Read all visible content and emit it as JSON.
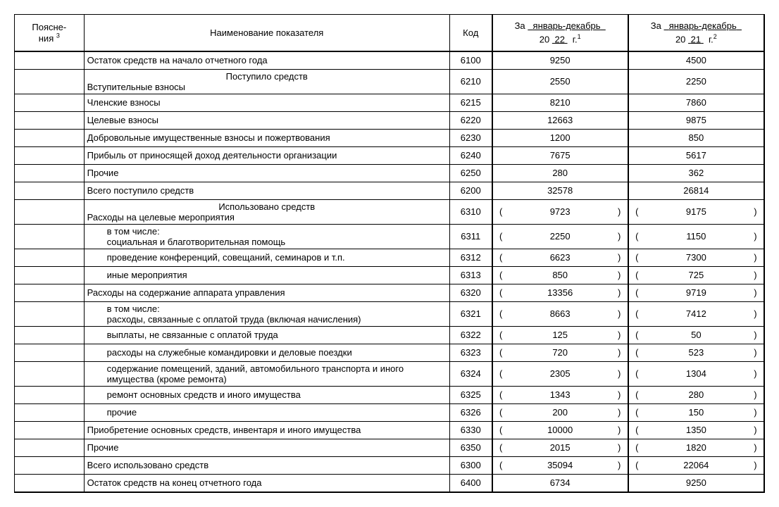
{
  "colors": {
    "background": "#ffffff",
    "border": "#000000",
    "text": "#000000"
  },
  "font": {
    "family": "Arial",
    "size_pt": 10
  },
  "header": {
    "notes_line1": "Поясне-",
    "notes_line2": "ния",
    "notes_sup": "3",
    "name": "Наименование показателя",
    "code": "Код",
    "za": "За",
    "period": "январь-декабрь",
    "twenty": "20",
    "year1": "22",
    "year2": "21",
    "g": "г.",
    "sup1": "1",
    "sup2": "2"
  },
  "rows": [
    {
      "name": "Остаток средств на начало отчетного года",
      "code": "6100",
      "v1": "9250",
      "v2": "4500",
      "paren": false
    },
    {
      "section": "Поступило средств",
      "name": "Вступительные взносы",
      "code": "6210",
      "v1": "2550",
      "v2": "2250",
      "paren": false
    },
    {
      "name": "Членские взносы",
      "code": "6215",
      "v1": "8210",
      "v2": "7860",
      "paren": false
    },
    {
      "name": "Целевые взносы",
      "code": "6220",
      "v1": "12663",
      "v2": "9875",
      "paren": false
    },
    {
      "name": "Добровольные имущественные взносы и пожертвования",
      "code": "6230",
      "v1": "1200",
      "v2": "850",
      "paren": false
    },
    {
      "name": "Прибыль от приносящей доход деятельности организации",
      "code": "6240",
      "v1": "7675",
      "v2": "5617",
      "paren": false
    },
    {
      "name": "Прочие",
      "code": "6250",
      "v1": "280",
      "v2": "362",
      "paren": false
    },
    {
      "name": "Всего поступило средств",
      "code": "6200",
      "v1": "32578",
      "v2": "26814",
      "paren": false
    },
    {
      "section": "Использовано средств",
      "name": "Расходы на целевые мероприятия",
      "code": "6310",
      "v1": "9723",
      "v2": "9175",
      "paren": true
    },
    {
      "name_pre": "в том числе:",
      "name": "социальная и благотворительная помощь",
      "indent": true,
      "code": "6311",
      "v1": "2250",
      "v2": "1150",
      "paren": true
    },
    {
      "name": "проведение конференций, совещаний, семинаров и т.п.",
      "indent": true,
      "code": "6312",
      "v1": "6623",
      "v2": "7300",
      "paren": true
    },
    {
      "name": "иные мероприятия",
      "indent": true,
      "code": "6313",
      "v1": "850",
      "v2": "725",
      "paren": true
    },
    {
      "name": "Расходы на содержание аппарата управления",
      "code": "6320",
      "v1": "13356",
      "v2": "9719",
      "paren": true
    },
    {
      "name_pre": "в том числе:",
      "name": "расходы, связанные с оплатой труда (включая начисления)",
      "indent": true,
      "code": "6321",
      "v1": "8663",
      "v2": "7412",
      "paren": true
    },
    {
      "name": "выплаты, не связанные с оплатой труда",
      "indent": true,
      "code": "6322",
      "v1": "125",
      "v2": "50",
      "paren": true
    },
    {
      "name": "расходы на служебные командировки и деловые поездки",
      "indent": true,
      "code": "6323",
      "v1": "720",
      "v2": "523",
      "paren": true
    },
    {
      "name": "содержание помещений, зданий, автомобильного транспорта и иного имущества (кроме ремонта)",
      "indent": true,
      "code": "6324",
      "v1": "2305",
      "v2": "1304",
      "paren": true
    },
    {
      "name": "ремонт основных средств и иного имущества",
      "indent": true,
      "code": "6325",
      "v1": "1343",
      "v2": "280",
      "paren": true
    },
    {
      "name": "прочие",
      "indent": true,
      "code": "6326",
      "v1": "200",
      "v2": "150",
      "paren": true
    },
    {
      "name": "Приобретение основных средств, инвентаря и иного имущества",
      "code": "6330",
      "v1": "10000",
      "v2": "1350",
      "paren": true
    },
    {
      "name": "Прочие",
      "code": "6350",
      "v1": "2015",
      "v2": "1820",
      "paren": true
    },
    {
      "name": "Всего использовано средств",
      "code": "6300",
      "v1": "35094",
      "v2": "22064",
      "paren": true
    },
    {
      "name": "Остаток средств на конец отчетного года",
      "code": "6400",
      "v1": "6734",
      "v2": "9250",
      "paren": false
    }
  ]
}
